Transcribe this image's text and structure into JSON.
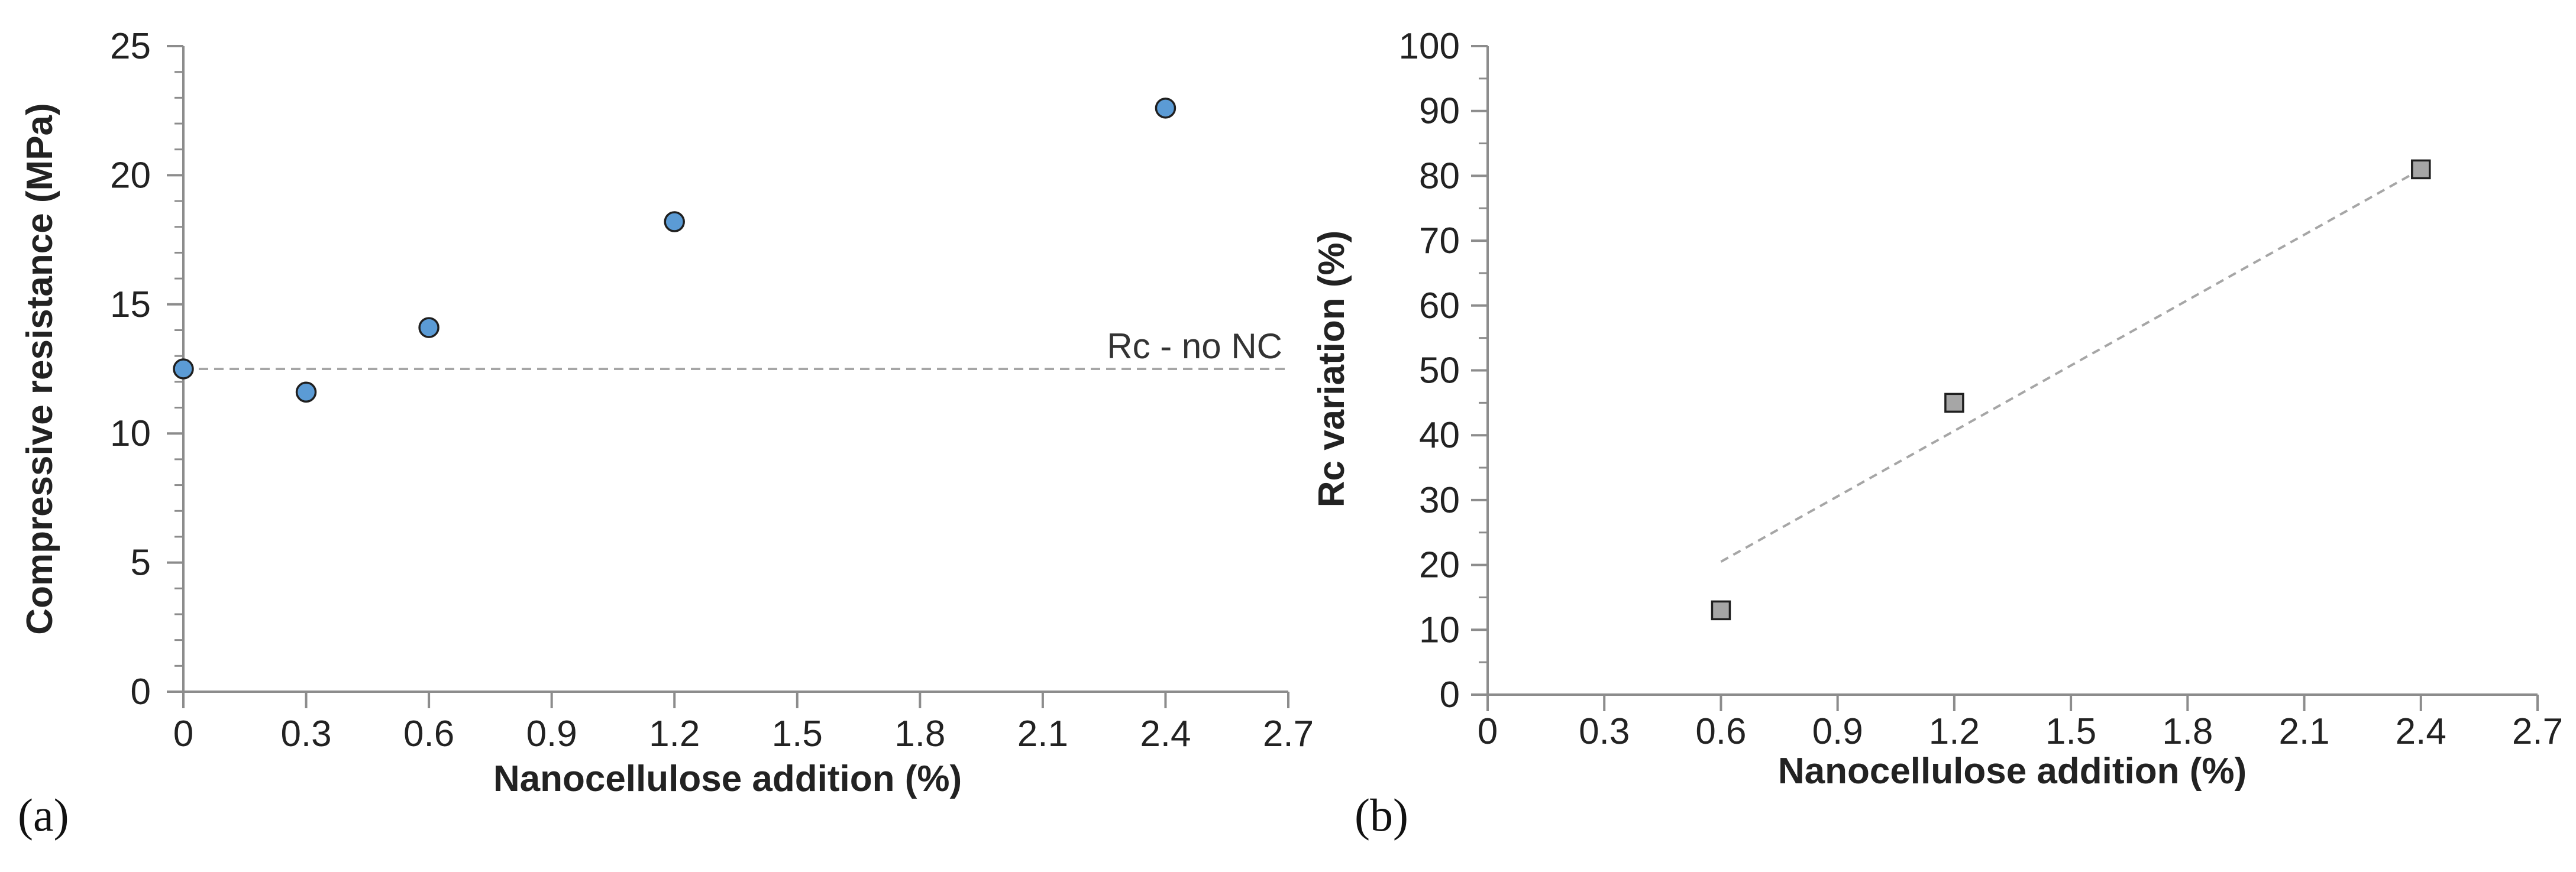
{
  "chart_data": [
    {
      "id": "a",
      "panel_label": "(a)",
      "type": "scatter",
      "xlabel": "Nanocellulose addition (%)",
      "ylabel": "Compressive resistance (MPa)",
      "xlim": [
        0,
        2.7
      ],
      "ylim": [
        0,
        25
      ],
      "xticks": [
        "0",
        "0.3",
        "0.6",
        "0.9",
        "1.2",
        "1.5",
        "1.8",
        "2.1",
        "2.4",
        "2.7"
      ],
      "yticks": [
        "0",
        "5",
        "10",
        "15",
        "20",
        "25"
      ],
      "grid": false,
      "series": [
        {
          "name": "Compressive resistance",
          "marker": "circle",
          "color": "#5b9bd5",
          "x": [
            0,
            0.3,
            0.6,
            1.2,
            2.4
          ],
          "y": [
            12.5,
            11.6,
            14.1,
            18.2,
            22.6
          ]
        }
      ],
      "reference_line": {
        "label": "Rc - no NC",
        "y": 12.5,
        "color": "#a6a6a6",
        "style": "dashed"
      }
    },
    {
      "id": "b",
      "panel_label": "(b)",
      "type": "scatter",
      "xlabel": "Nanocellulose addition (%)",
      "ylabel": "Rc variation (%)",
      "xlim": [
        0,
        2.7
      ],
      "ylim": [
        0,
        100
      ],
      "xticks": [
        "0",
        "0.3",
        "0.6",
        "0.9",
        "1.2",
        "1.5",
        "1.8",
        "2.1",
        "2.4",
        "2.7"
      ],
      "yticks": [
        "0",
        "10",
        "20",
        "30",
        "40",
        "50",
        "60",
        "70",
        "80",
        "90",
        "100"
      ],
      "grid": false,
      "series": [
        {
          "name": "Rc variation",
          "marker": "square",
          "color": "#a6a6a6",
          "x": [
            0.6,
            1.2,
            2.4
          ],
          "y": [
            13,
            45,
            81
          ]
        }
      ],
      "trendline": {
        "type": "linear",
        "x": [
          0.6,
          2.4
        ],
        "y": [
          20.5,
          81
        ],
        "color": "#a6a6a6",
        "style": "dashed"
      }
    }
  ]
}
